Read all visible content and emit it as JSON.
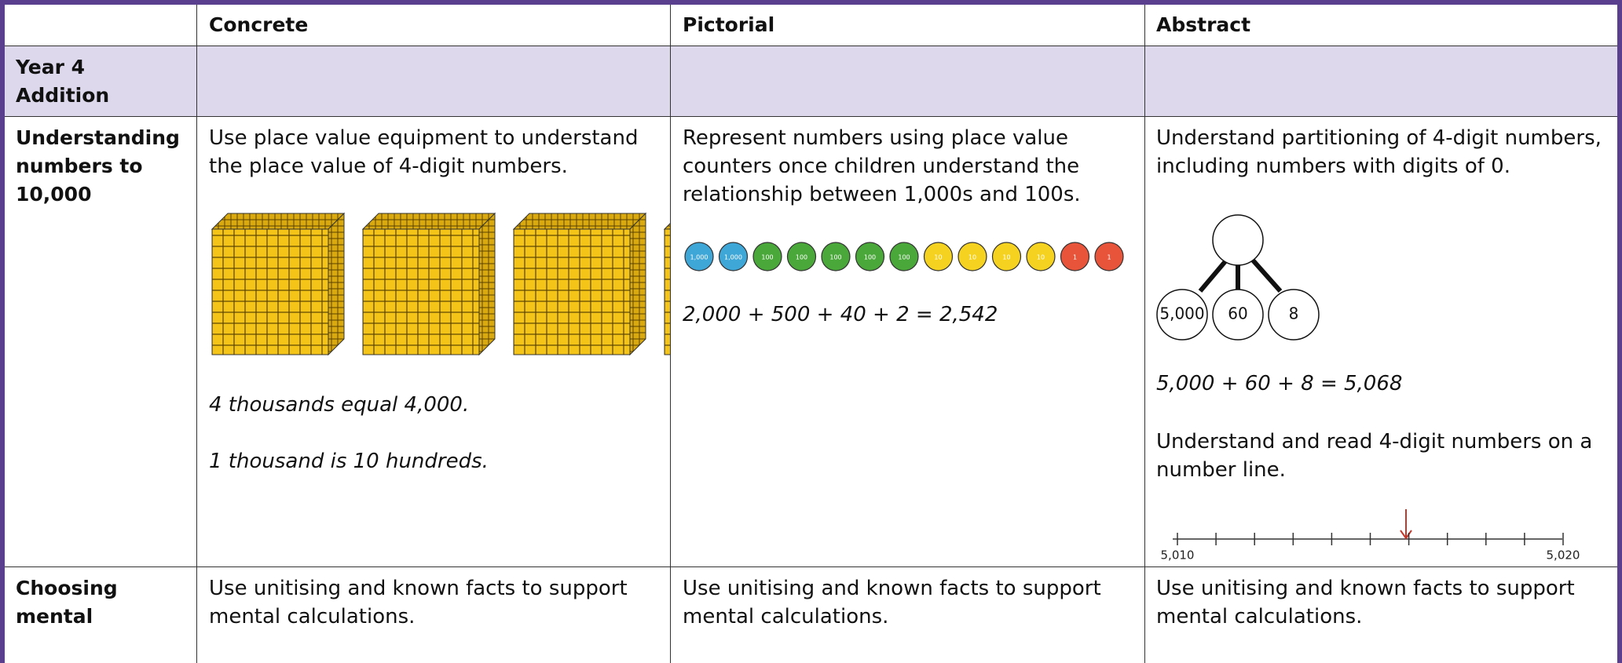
{
  "header": [
    "Concrete",
    "Pictorial",
    "Abstract"
  ],
  "section": "Year 4 Addition",
  "rows": [
    {
      "title": "Understanding numbers to 10,000",
      "concrete": {
        "text": "Use place value equipment to understand the place value of 4-digit numbers.",
        "notes": [
          "4 thousands equal 4,000.",
          "1 thousand is 10 hundreds."
        ]
      },
      "pictorial": {
        "text": "Represent numbers using place value counters once children understand the relationship between 1,000s and 100s.",
        "counters": [
          {
            "label": "1,000",
            "color": "#3fa6d8"
          },
          {
            "label": "1,000",
            "color": "#3fa6d8"
          },
          {
            "label": "100",
            "color": "#4aa83a"
          },
          {
            "label": "100",
            "color": "#4aa83a"
          },
          {
            "label": "100",
            "color": "#4aa83a"
          },
          {
            "label": "100",
            "color": "#4aa83a"
          },
          {
            "label": "100",
            "color": "#4aa83a"
          },
          {
            "label": "10",
            "color": "#f5d21f"
          },
          {
            "label": "10",
            "color": "#f5d21f"
          },
          {
            "label": "10",
            "color": "#f5d21f"
          },
          {
            "label": "10",
            "color": "#f5d21f"
          },
          {
            "label": "1",
            "color": "#e8543a"
          },
          {
            "label": "1",
            "color": "#e8543a"
          }
        ],
        "equation": "2,000 + 500 + 40 + 2 = 2,542"
      },
      "abstract": {
        "text": "Understand partitioning of 4-digit numbers, including numbers with digits of 0.",
        "parts": [
          "5,000",
          "60",
          "8"
        ],
        "equation": "5,000 + 60 + 8 = 5,068",
        "text2": "Understand and read 4-digit numbers on a number line.",
        "number_line": [
          "5,010",
          "5,020"
        ]
      }
    },
    {
      "title": "Choosing mental",
      "concrete": {
        "text": "Use unitising and known facts to support mental calculations."
      },
      "pictorial": {
        "text": "Use unitising and known facts to support mental calculations."
      },
      "abstract": {
        "text": "Use unitising and known facts to support mental calculations."
      }
    }
  ]
}
